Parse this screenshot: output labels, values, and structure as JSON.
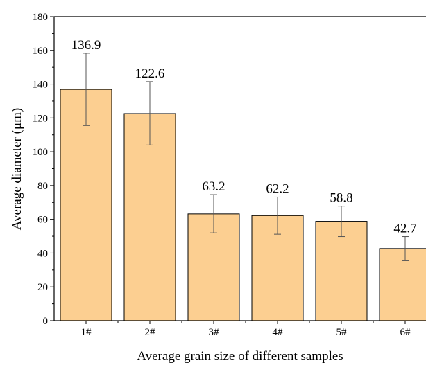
{
  "chart_data": {
    "type": "bar",
    "title": "",
    "xlabel": "Average grain size of different samples",
    "ylabel": "Average diameter (μm)",
    "categories": [
      "1#",
      "2#",
      "3#",
      "4#",
      "5#",
      "6#"
    ],
    "values": [
      136.9,
      122.6,
      63.2,
      62.2,
      58.8,
      42.7
    ],
    "value_labels": [
      "136.9",
      "122.6",
      "63.2",
      "62.2",
      "58.8",
      "42.7"
    ],
    "error_low": [
      115.5,
      104.0,
      52.0,
      51.2,
      49.8,
      35.5
    ],
    "error_high": [
      158.3,
      141.5,
      74.6,
      73.2,
      67.8,
      49.8
    ],
    "ylim": [
      0,
      180
    ],
    "yticks": [
      0,
      20,
      40,
      60,
      80,
      100,
      120,
      140,
      160,
      180
    ],
    "ytick_labels": [
      "0",
      "20",
      "40",
      "60",
      "80",
      "100",
      "120",
      "140",
      "160",
      "180"
    ],
    "grid": false,
    "legend": "none",
    "colors": {
      "bar_fill": "#fccf91",
      "bar_stroke": "#000000",
      "error_bar": "#555555"
    }
  }
}
